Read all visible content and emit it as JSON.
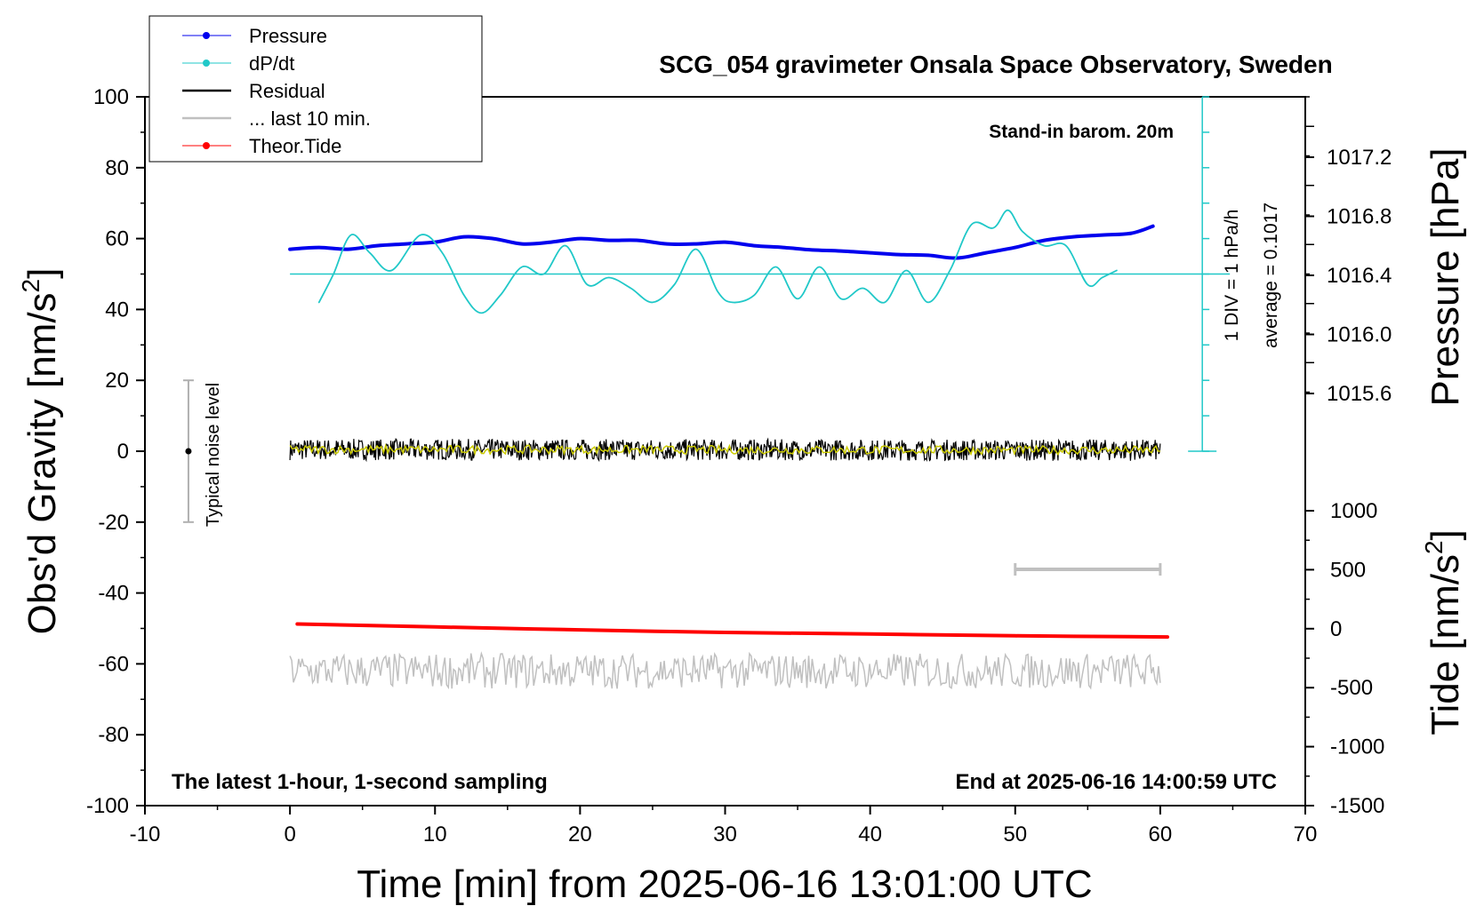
{
  "chart_data": {
    "type": "line",
    "title": "SCG_054 gravimeter Onsala Space Observatory, Sweden",
    "xlabel": "Time [min] from 2025-06-16 13:01:00 UTC",
    "ylabel": "Obs'd Gravity [nm/s",
    "ylabel_sup": "2",
    "ylabel_end": "]",
    "y2label": "Pressure [hPa]",
    "y3label": "Tide [nm/s",
    "y3label_sup": "2",
    "y3label_end": "]",
    "xlim": [
      -10,
      70
    ],
    "ylim": [
      -100,
      100
    ],
    "y2lim": [
      1015.2,
      1017.6
    ],
    "y3lim": [
      -1500,
      1000
    ],
    "xticks": [
      "-10",
      "0",
      "10",
      "20",
      "30",
      "40",
      "50",
      "60",
      "70"
    ],
    "yticks": [
      "100",
      "80",
      "60",
      "40",
      "20",
      "0",
      "-20",
      "-40",
      "-60",
      "-80",
      "-100"
    ],
    "y2ticks": [
      "1017.2",
      "1016.8",
      "1016.4",
      "1016.0",
      "1015.6"
    ],
    "y3ticks": [
      "1000",
      "500",
      "0",
      "-500",
      "-1000",
      "-1500"
    ],
    "legend_position": "top-left",
    "legend": [
      {
        "label": "Pressure",
        "color": "#0000ee",
        "style": "line-dot"
      },
      {
        "label": "dP/dt",
        "color": "#20c8c8",
        "style": "line-dot"
      },
      {
        "label": "Residual",
        "color": "#000000",
        "style": "line"
      },
      {
        "label": "... last 10 min.",
        "color": "#c0c0c0",
        "style": "line"
      },
      {
        "label": "Theor.Tide",
        "color": "#ff0000",
        "style": "line-dot"
      }
    ],
    "annotations": {
      "barometer": "Stand-in barom. 20m",
      "sampling": "The latest 1-hour, 1-second sampling",
      "end_time": "End at 2025-06-16 14:00:59 UTC",
      "noise": "Typical noise level",
      "div_label": "1 DIV = 1 hPa/h",
      "average": "average = 0.1017"
    },
    "noise_bar": {
      "x": -7,
      "y_low": -20,
      "y_high": 20
    },
    "scale_bar_minutes": [
      50,
      60
    ],
    "series": [
      {
        "name": "Pressure",
        "color": "#0000ee",
        "axis": "gravity",
        "x": [
          0,
          2,
          4,
          6,
          8,
          10,
          12,
          14,
          16,
          18,
          20,
          22,
          24,
          26,
          28,
          30,
          32,
          34,
          36,
          38,
          40,
          42,
          44,
          46,
          48,
          50,
          52,
          54,
          56,
          58,
          59.5
        ],
        "y": [
          57,
          57.5,
          57,
          58,
          58.5,
          59,
          60.5,
          60,
          58.5,
          59,
          60,
          59.5,
          59.5,
          58.5,
          58.5,
          59,
          58,
          57.5,
          56.8,
          56.5,
          56,
          55.5,
          55.3,
          54.5,
          56,
          57.5,
          59.5,
          60.5,
          61,
          61.5,
          63.5
        ]
      },
      {
        "name": "dP/dt",
        "color": "#20c8c8",
        "axis": "gravity",
        "x": [
          2,
          3,
          4.2,
          5.5,
          7,
          9,
          10.5,
          12,
          13.2,
          14.5,
          16,
          17.5,
          19,
          20.5,
          22,
          23.5,
          25,
          26.5,
          28,
          29.5,
          30.5,
          32,
          33.5,
          35,
          36.5,
          38,
          39.5,
          41,
          42.5,
          44,
          45.5,
          47,
          48.5,
          49.5,
          50.5,
          52,
          53.5,
          55,
          56,
          57
        ],
        "y": [
          42,
          50,
          61,
          56,
          51,
          61,
          56,
          44,
          39,
          44,
          52,
          50,
          58,
          47,
          49,
          46,
          42,
          47,
          57,
          45,
          42,
          44,
          52,
          43,
          52,
          43,
          46,
          42,
          51,
          42,
          51,
          64,
          63,
          68,
          62,
          58,
          58,
          47,
          49,
          51
        ]
      },
      {
        "name": "Residual",
        "color": "#000000",
        "axis": "gravity",
        "x": [
          0,
          60
        ],
        "y": [
          0.5,
          0.3
        ],
        "noise_amplitude": 3
      },
      {
        "name": "... last 10 min.",
        "color": "#c0c0c0",
        "axis": "gravity",
        "x": [
          0,
          60
        ],
        "y": [
          -62,
          -62
        ],
        "noise_amplitude": 5
      },
      {
        "name": "Theor.Tide",
        "color": "#ff0000",
        "axis": "tide",
        "x": [
          0.5,
          10,
          20,
          30,
          40,
          50,
          60.5
        ],
        "y": [
          40,
          15,
          -10,
          -32,
          -45,
          -60,
          -70
        ]
      }
    ]
  }
}
